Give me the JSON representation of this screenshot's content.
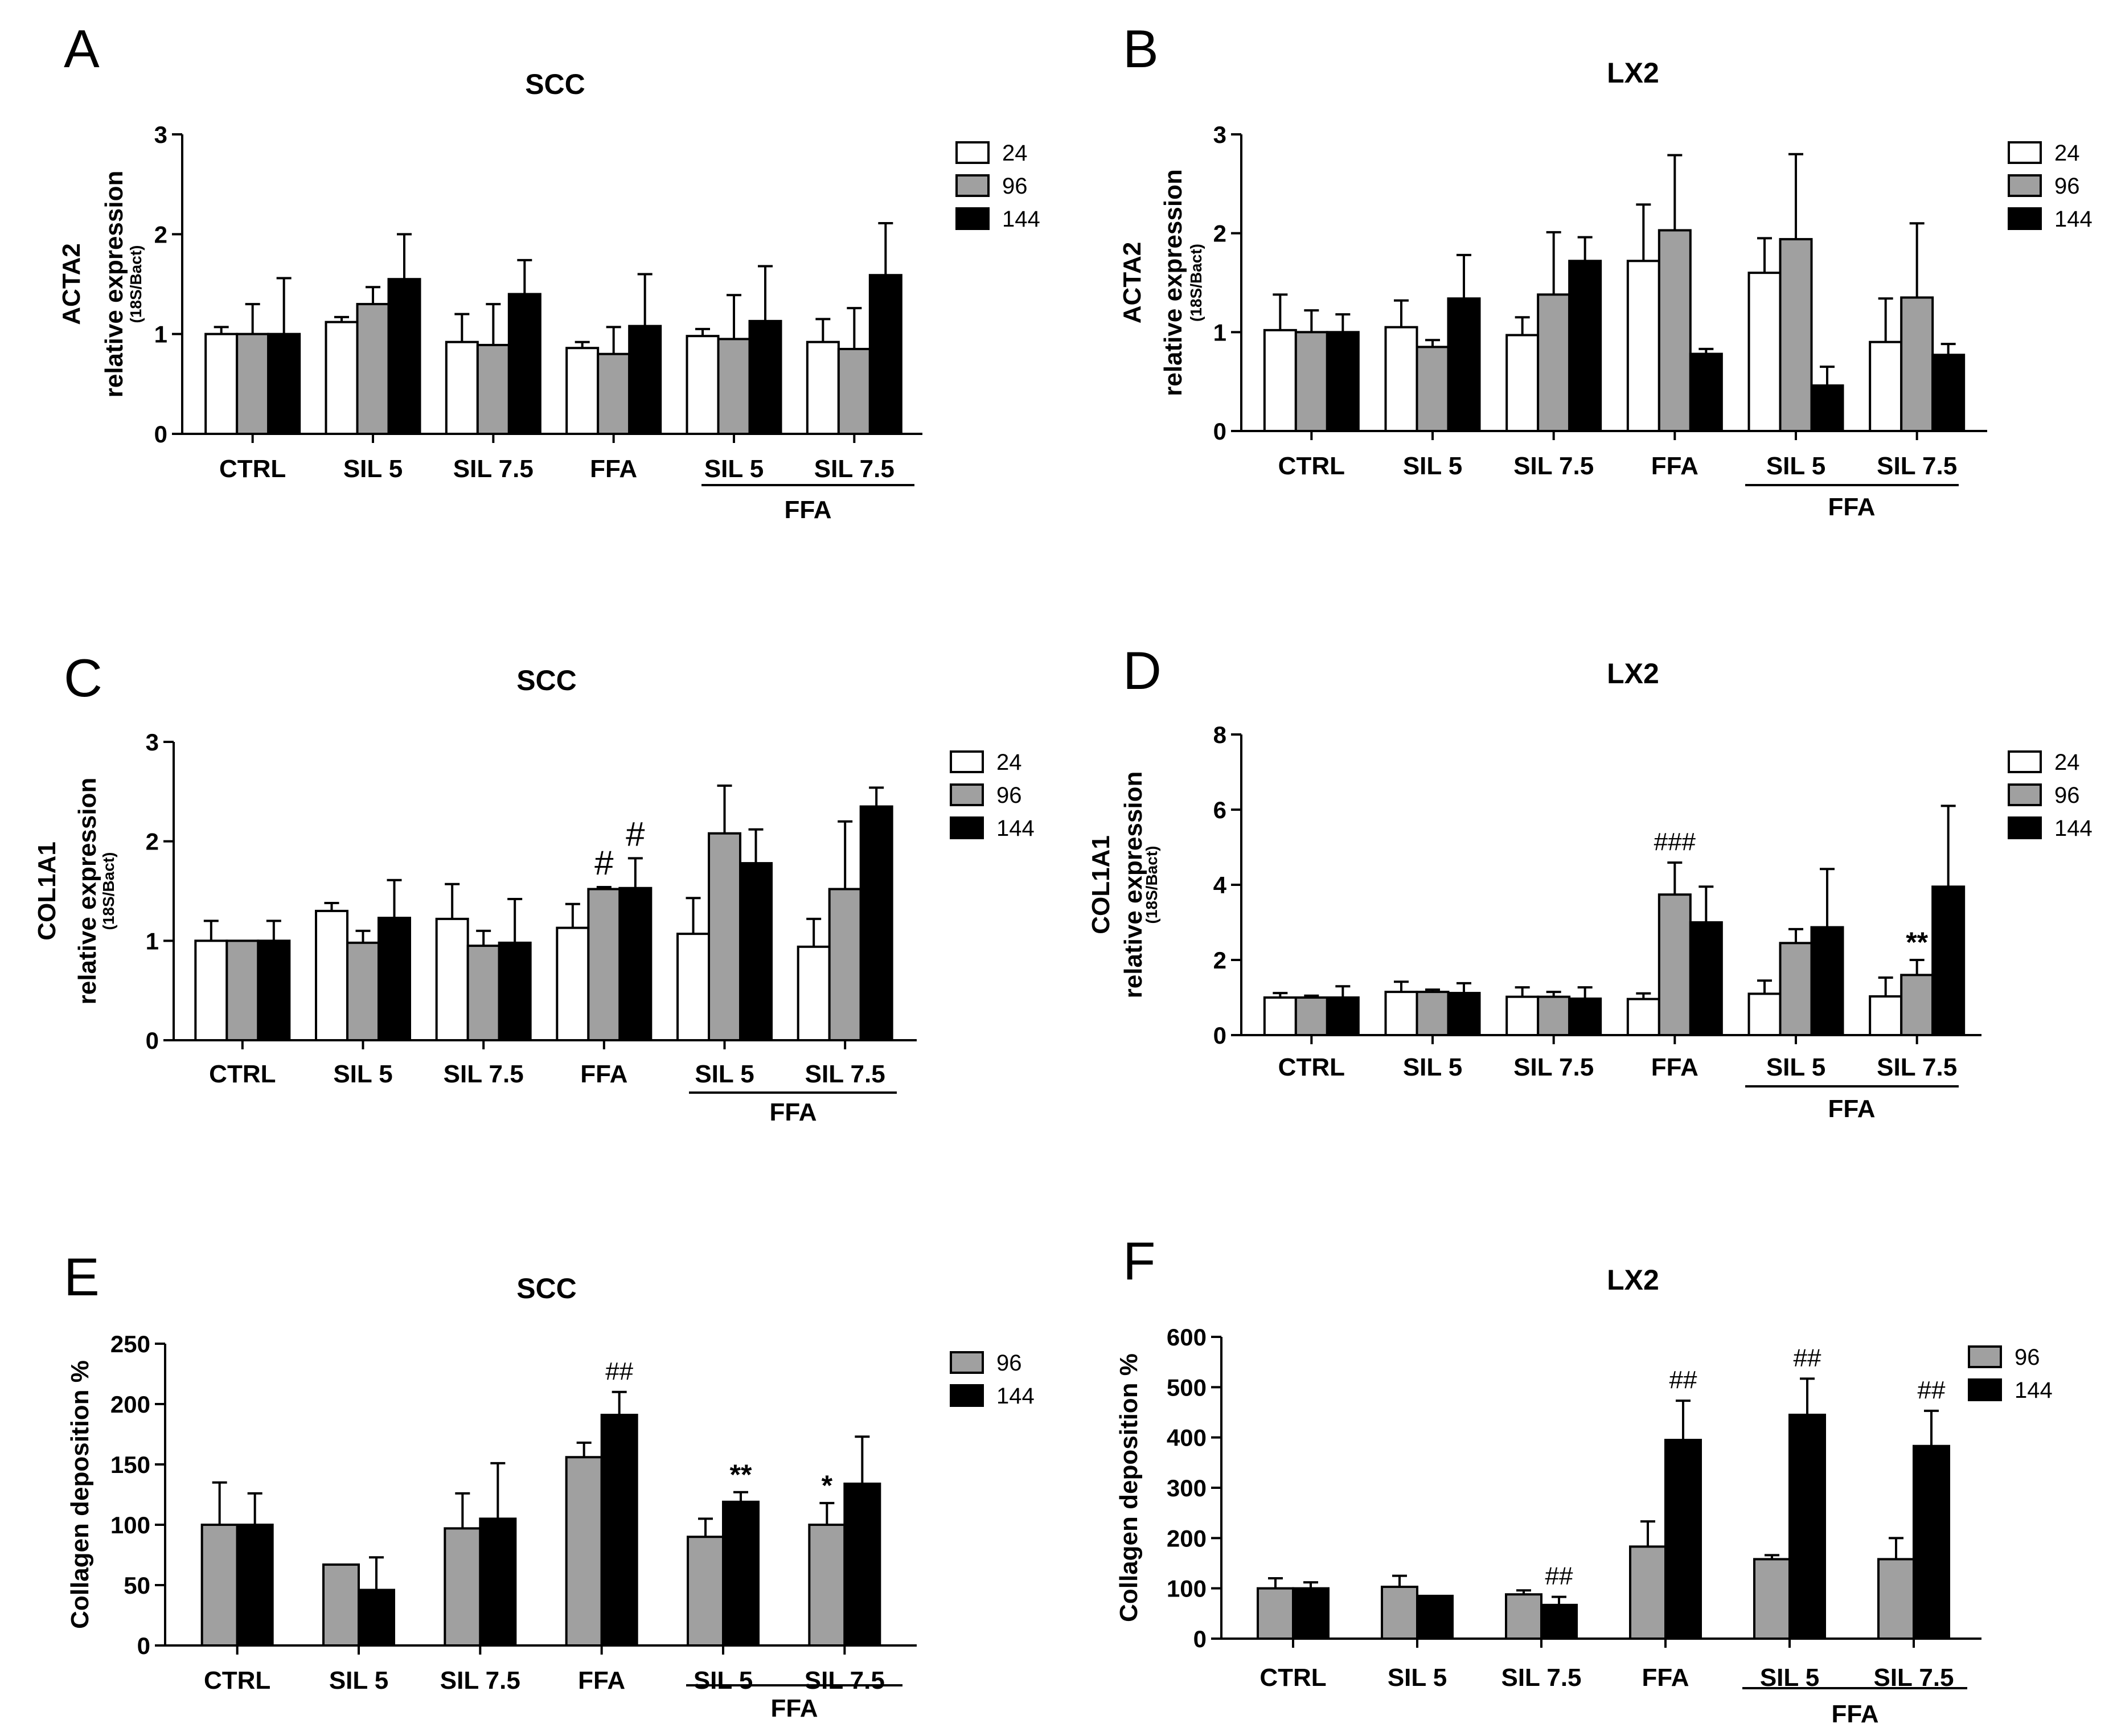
{
  "colors": {
    "h24": "#ffffff",
    "h96": "#a0a0a0",
    "h144": "#000000",
    "ink": "#000000"
  },
  "panels": [
    {
      "letter": "A",
      "title": "SCC",
      "ylabel": "ACTA2",
      "ylabel2": "relative expression",
      "ylabel3": "(18S/Bact)",
      "ylim": [
        0,
        3
      ],
      "yticks": [
        0,
        1,
        2,
        3
      ],
      "categories": [
        "CTRL",
        "SIL 5",
        "SIL 7.5",
        "FFA",
        "SIL 5",
        "SIL 7.5"
      ],
      "group_label": "FFA",
      "legend": [
        "24",
        "96",
        "144"
      ],
      "series": [
        {
          "name": "24",
          "values": [
            1.0,
            1.12,
            0.92,
            0.86,
            0.98,
            0.92
          ],
          "errors": [
            0.07,
            0.05,
            0.28,
            0.06,
            0.07,
            0.23
          ]
        },
        {
          "name": "96",
          "values": [
            1.0,
            1.3,
            0.89,
            0.8,
            0.95,
            0.85
          ],
          "errors": [
            0.3,
            0.17,
            0.41,
            0.27,
            0.44,
            0.41
          ]
        },
        {
          "name": "144",
          "values": [
            1.0,
            1.55,
            1.4,
            1.08,
            1.13,
            1.59
          ],
          "errors": [
            0.56,
            0.45,
            0.34,
            0.52,
            0.55,
            0.52
          ]
        }
      ],
      "annotations": []
    },
    {
      "letter": "B",
      "title": "LX2",
      "ylabel": "ACTA2",
      "ylabel2": "relative expression",
      "ylabel3": "(18S/Bact)",
      "ylim": [
        0,
        3
      ],
      "yticks": [
        0,
        1,
        2,
        3
      ],
      "categories": [
        "CTRL",
        "SIL 5",
        "SIL 7.5",
        "FFA",
        "SIL 5",
        "SIL 7.5"
      ],
      "group_label": "FFA",
      "legend": [
        "24",
        "96",
        "144"
      ],
      "series": [
        {
          "name": "24",
          "values": [
            1.02,
            1.05,
            0.97,
            1.72,
            1.6,
            0.9
          ],
          "errors": [
            0.36,
            0.27,
            0.18,
            0.57,
            0.35,
            0.44
          ]
        },
        {
          "name": "96",
          "values": [
            1.0,
            0.85,
            1.38,
            2.03,
            1.94,
            1.35
          ],
          "errors": [
            0.22,
            0.07,
            0.63,
            0.76,
            0.86,
            0.75
          ]
        },
        {
          "name": "144",
          "values": [
            1.0,
            1.34,
            1.72,
            0.78,
            0.46,
            0.77
          ],
          "errors": [
            0.18,
            0.44,
            0.24,
            0.05,
            0.19,
            0.11
          ]
        }
      ],
      "annotations": []
    },
    {
      "letter": "C",
      "title": "SCC",
      "ylabel": "COL1A1",
      "ylabel2": "relative expression",
      "ylabel3": "(18S/Bact)",
      "ylim": [
        0,
        3
      ],
      "yticks": [
        0,
        1,
        2,
        3
      ],
      "categories": [
        "CTRL",
        "SIL 5",
        "SIL 7.5",
        "FFA",
        "SIL 5",
        "SIL 7.5"
      ],
      "group_label": "FFA",
      "legend": [
        "24",
        "96",
        "144"
      ],
      "series": [
        {
          "name": "24",
          "values": [
            1.0,
            1.3,
            1.22,
            1.13,
            1.07,
            0.94
          ],
          "errors": [
            0.2,
            0.08,
            0.35,
            0.24,
            0.36,
            0.28
          ]
        },
        {
          "name": "96",
          "values": [
            1.0,
            0.98,
            0.95,
            1.52,
            2.08,
            1.52
          ],
          "errors": [
            0.0,
            0.12,
            0.15,
            0.02,
            0.48,
            0.68
          ]
        },
        {
          "name": "144",
          "values": [
            1.0,
            1.23,
            0.98,
            1.53,
            1.78,
            2.35
          ],
          "errors": [
            0.2,
            0.38,
            0.44,
            0.3,
            0.34,
            0.19
          ]
        }
      ],
      "annotations": [
        {
          "text": "#",
          "cat": 3,
          "series": 1,
          "size": "big"
        },
        {
          "text": "#",
          "cat": 3,
          "series": 2,
          "size": "big"
        }
      ]
    },
    {
      "letter": "D",
      "title": "LX2",
      "ylabel": "COL1A1",
      "ylabel2": "relative expression",
      "ylabel3": "(18S/Bact)",
      "ylim": [
        0,
        8
      ],
      "yticks": [
        0,
        2,
        4,
        6,
        8
      ],
      "categories": [
        "CTRL",
        "SIL 5",
        "SIL 7.5",
        "FFA",
        "SIL 5",
        "SIL 7.5"
      ],
      "group_label": "FFA",
      "legend": [
        "24",
        "96",
        "144"
      ],
      "series": [
        {
          "name": "24",
          "values": [
            1.0,
            1.15,
            1.02,
            0.96,
            1.1,
            1.03
          ],
          "errors": [
            0.12,
            0.27,
            0.25,
            0.15,
            0.35,
            0.5
          ]
        },
        {
          "name": "96",
          "values": [
            1.0,
            1.15,
            1.02,
            3.74,
            2.45,
            1.6
          ],
          "errors": [
            0.05,
            0.06,
            0.13,
            0.85,
            0.37,
            0.4
          ]
        },
        {
          "name": "144",
          "values": [
            1.0,
            1.12,
            0.97,
            3.0,
            2.87,
            3.95
          ],
          "errors": [
            0.3,
            0.26,
            0.3,
            0.95,
            1.55,
            2.15
          ]
        }
      ],
      "annotations": [
        {
          "text": "###",
          "cat": 3,
          "series": 1,
          "size": "normal"
        },
        {
          "text": "**",
          "cat": 5,
          "series": 1,
          "size": "star"
        }
      ]
    },
    {
      "letter": "E",
      "title": "SCC",
      "ylabel": "Collagen deposition %",
      "ylabel2": "",
      "ylabel3": "",
      "ylim": [
        0,
        250
      ],
      "yticks": [
        0,
        50,
        100,
        150,
        200,
        250
      ],
      "categories": [
        "CTRL",
        "SIL 5",
        "SIL 7.5",
        "FFA",
        "SIL 5",
        "SIL 7.5"
      ],
      "group_label": "FFA",
      "legend": [
        "96",
        "144"
      ],
      "series": [
        {
          "name": "96",
          "values": [
            100,
            67,
            97,
            156,
            90,
            100
          ],
          "errors": [
            35,
            0,
            29,
            12,
            15,
            18
          ]
        },
        {
          "name": "144",
          "values": [
            100,
            46,
            105,
            191,
            119,
            134
          ],
          "errors": [
            26,
            27,
            46,
            19,
            8,
            39
          ]
        }
      ],
      "annotations": [
        {
          "text": "##",
          "cat": 3,
          "series": 1,
          "size": "normal"
        },
        {
          "text": "**",
          "cat": 4,
          "series": 1,
          "size": "star"
        },
        {
          "text": "*",
          "cat": 5,
          "series": 0,
          "size": "star"
        }
      ]
    },
    {
      "letter": "F",
      "title": "LX2",
      "ylabel": "Collagen deposition %",
      "ylabel2": "",
      "ylabel3": "",
      "ylim": [
        0,
        600
      ],
      "yticks": [
        0,
        100,
        200,
        300,
        400,
        500,
        600
      ],
      "categories": [
        "CTRL",
        "SIL 5",
        "SIL 7.5",
        "FFA",
        "SIL 5",
        "SIL 7.5"
      ],
      "group_label": "FFA",
      "legend": [
        "96",
        "144"
      ],
      "series": [
        {
          "name": "96",
          "values": [
            100,
            103,
            88,
            183,
            158,
            158
          ],
          "errors": [
            20,
            22,
            8,
            50,
            8,
            42
          ]
        },
        {
          "name": "144",
          "values": [
            100,
            85,
            67,
            395,
            445,
            383
          ],
          "errors": [
            12,
            0,
            16,
            78,
            72,
            70
          ]
        }
      ],
      "annotations": [
        {
          "text": "##",
          "cat": 2,
          "series": 1,
          "size": "normal"
        },
        {
          "text": "##",
          "cat": 3,
          "series": 1,
          "size": "normal"
        },
        {
          "text": "##",
          "cat": 4,
          "series": 1,
          "size": "normal"
        },
        {
          "text": "##",
          "cat": 5,
          "series": 1,
          "size": "normal"
        }
      ]
    }
  ]
}
